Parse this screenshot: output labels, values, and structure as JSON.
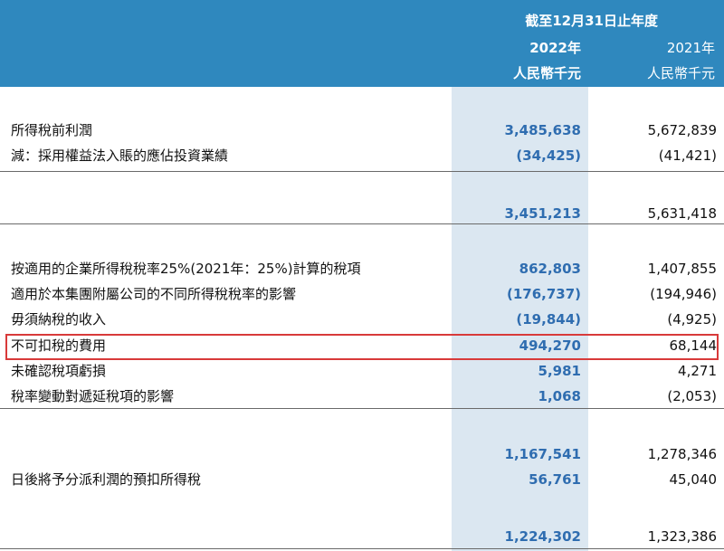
{
  "header": {
    "period_title": "截至12月31日止年度",
    "col_2022_year": "2022年",
    "col_2021_year": "2021年",
    "col_2022_unit": "人民幣千元",
    "col_2021_unit": "人民幣千元"
  },
  "rows": [
    {
      "label": "所得稅前利潤",
      "v2022": "3,485,638",
      "v2021": "5,672,839"
    },
    {
      "label": "減：採用權益法入賬的應佔投資業績",
      "v2022": "(34,425)",
      "v2021": "(41,421)"
    },
    {
      "label": "",
      "v2022": "3,451,213",
      "v2021": "5,631,418"
    },
    {
      "label": "按適用的企業所得稅稅率25%(2021年：25%)計算的稅項",
      "v2022": "862,803",
      "v2021": "1,407,855"
    },
    {
      "label": "適用於本集團附屬公司的不同所得稅稅率的影響",
      "v2022": "(176,737)",
      "v2021": "(194,946)"
    },
    {
      "label": "毋須納稅的收入",
      "v2022": "(19,844)",
      "v2021": "(4,925)"
    },
    {
      "label": "不可扣稅的費用",
      "v2022": "494,270",
      "v2021": "68,144"
    },
    {
      "label": "未確認稅項虧損",
      "v2022": "5,981",
      "v2021": "4,271"
    },
    {
      "label": "稅率變動對遞延稅項的影響",
      "v2022": "1,068",
      "v2021": "(2,053)"
    },
    {
      "label": "",
      "v2022": "1,167,541",
      "v2021": "1,278,346"
    },
    {
      "label": "日後將予分派利潤的預扣所得稅",
      "v2022": "56,761",
      "v2021": "45,040"
    },
    {
      "label": "",
      "v2022": "1,224,302",
      "v2021": "1,323,386"
    }
  ],
  "colors": {
    "header_bg": "#2f88be",
    "highlight_column_bg": "#dbe7f1",
    "value_2022": "#2f6db0",
    "annotation_box": "#d83a3a"
  }
}
